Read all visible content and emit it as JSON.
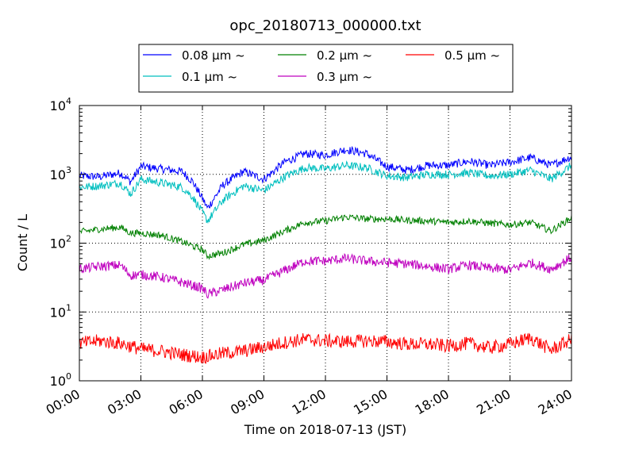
{
  "chart_data": {
    "type": "line",
    "title": "opc_20180713_000000.txt",
    "xlabel": "Time on 2018-07-13 (JST)",
    "ylabel": "Count / L",
    "yscale": "log",
    "ylim": [
      1,
      10000
    ],
    "xlim": [
      "00:00",
      "24:00"
    ],
    "x_ticks": [
      "00:00",
      "03:00",
      "06:00",
      "09:00",
      "12:00",
      "15:00",
      "18:00",
      "21:00",
      "24:00"
    ],
    "y_ticks": [
      {
        "base": "10",
        "exp": "0",
        "value": 1
      },
      {
        "base": "10",
        "exp": "1",
        "value": 10
      },
      {
        "base": "10",
        "exp": "2",
        "value": 100
      },
      {
        "base": "10",
        "exp": "3",
        "value": 1000
      },
      {
        "base": "10",
        "exp": "4",
        "value": 10000
      }
    ],
    "grid": true,
    "legend_position": "top",
    "series": [
      {
        "name": "0.08 μm ~",
        "color": "#0000ff",
        "noise": 0.06,
        "points": [
          [
            "00:00",
            950
          ],
          [
            "01:00",
            920
          ],
          [
            "02:00",
            1050
          ],
          [
            "02:30",
            780
          ],
          [
            "03:00",
            1300
          ],
          [
            "04:00",
            1200
          ],
          [
            "05:00",
            1100
          ],
          [
            "05:30",
            800
          ],
          [
            "06:00",
            450
          ],
          [
            "06:15",
            320
          ],
          [
            "07:00",
            700
          ],
          [
            "08:00",
            1100
          ],
          [
            "09:00",
            850
          ],
          [
            "10:00",
            1500
          ],
          [
            "11:00",
            2000
          ],
          [
            "12:00",
            1900
          ],
          [
            "13:00",
            2300
          ],
          [
            "14:00",
            2000
          ],
          [
            "15:00",
            1300
          ],
          [
            "16:00",
            1150
          ],
          [
            "17:00",
            1350
          ],
          [
            "18:00",
            1350
          ],
          [
            "19:00",
            1550
          ],
          [
            "20:00",
            1350
          ],
          [
            "21:00",
            1500
          ],
          [
            "22:00",
            1750
          ],
          [
            "23:00",
            1350
          ],
          [
            "24:00",
            1800
          ]
        ]
      },
      {
        "name": "0.1 μm ~",
        "color": "#00bfbf",
        "noise": 0.06,
        "points": [
          [
            "00:00",
            650
          ],
          [
            "01:00",
            680
          ],
          [
            "02:00",
            750
          ],
          [
            "02:30",
            520
          ],
          [
            "03:00",
            850
          ],
          [
            "04:00",
            750
          ],
          [
            "05:00",
            650
          ],
          [
            "05:30",
            480
          ],
          [
            "06:00",
            280
          ],
          [
            "06:15",
            210
          ],
          [
            "07:00",
            420
          ],
          [
            "08:00",
            680
          ],
          [
            "09:00",
            580
          ],
          [
            "10:00",
            920
          ],
          [
            "11:00",
            1250
          ],
          [
            "12:00",
            1200
          ],
          [
            "13:00",
            1350
          ],
          [
            "14:00",
            1250
          ],
          [
            "15:00",
            950
          ],
          [
            "16:00",
            900
          ],
          [
            "17:00",
            1000
          ],
          [
            "18:00",
            1000
          ],
          [
            "19:00",
            1050
          ],
          [
            "20:00",
            950
          ],
          [
            "21:00",
            1000
          ],
          [
            "22:00",
            1150
          ],
          [
            "23:00",
            850
          ],
          [
            "24:00",
            1350
          ]
        ]
      },
      {
        "name": "0.2 μm ~",
        "color": "#008000",
        "noise": 0.05,
        "points": [
          [
            "00:00",
            145
          ],
          [
            "01:00",
            160
          ],
          [
            "02:00",
            170
          ],
          [
            "02:30",
            140
          ],
          [
            "03:00",
            140
          ],
          [
            "04:00",
            130
          ],
          [
            "05:00",
            105
          ],
          [
            "06:00",
            80
          ],
          [
            "06:15",
            65
          ],
          [
            "07:00",
            72
          ],
          [
            "08:00",
            95
          ],
          [
            "09:00",
            110
          ],
          [
            "10:00",
            150
          ],
          [
            "11:00",
            200
          ],
          [
            "12:00",
            210
          ],
          [
            "13:00",
            240
          ],
          [
            "14:00",
            225
          ],
          [
            "15:00",
            225
          ],
          [
            "16:00",
            215
          ],
          [
            "17:00",
            210
          ],
          [
            "18:00",
            200
          ],
          [
            "19:00",
            210
          ],
          [
            "20:00",
            195
          ],
          [
            "21:00",
            185
          ],
          [
            "22:00",
            200
          ],
          [
            "23:00",
            150
          ],
          [
            "24:00",
            235
          ]
        ]
      },
      {
        "name": "0.3 μm ~",
        "color": "#bf00bf",
        "noise": 0.07,
        "points": [
          [
            "00:00",
            42
          ],
          [
            "01:00",
            46
          ],
          [
            "02:00",
            48
          ],
          [
            "02:30",
            34
          ],
          [
            "03:00",
            35
          ],
          [
            "04:00",
            32
          ],
          [
            "05:00",
            27
          ],
          [
            "06:00",
            22
          ],
          [
            "06:15",
            18
          ],
          [
            "07:00",
            21
          ],
          [
            "08:00",
            26
          ],
          [
            "09:00",
            29
          ],
          [
            "10:00",
            40
          ],
          [
            "11:00",
            55
          ],
          [
            "12:00",
            55
          ],
          [
            "13:00",
            60
          ],
          [
            "14:00",
            55
          ],
          [
            "15:00",
            52
          ],
          [
            "16:00",
            50
          ],
          [
            "17:00",
            46
          ],
          [
            "18:00",
            42
          ],
          [
            "19:00",
            48
          ],
          [
            "20:00",
            43
          ],
          [
            "21:00",
            41
          ],
          [
            "22:00",
            52
          ],
          [
            "23:00",
            42
          ],
          [
            "24:00",
            62
          ]
        ]
      },
      {
        "name": "0.5 μm ~",
        "color": "#ff0000",
        "noise": 0.1,
        "points": [
          [
            "00:00",
            3.5
          ],
          [
            "01:00",
            3.8
          ],
          [
            "02:00",
            3.5
          ],
          [
            "03:00",
            2.9
          ],
          [
            "04:00",
            2.7
          ],
          [
            "05:00",
            2.4
          ],
          [
            "06:00",
            2.2
          ],
          [
            "07:00",
            2.5
          ],
          [
            "08:00",
            2.7
          ],
          [
            "09:00",
            3.1
          ],
          [
            "10:00",
            3.6
          ],
          [
            "11:00",
            4.0
          ],
          [
            "12:00",
            3.8
          ],
          [
            "13:00",
            3.7
          ],
          [
            "14:00",
            3.8
          ],
          [
            "15:00",
            3.7
          ],
          [
            "16:00",
            3.4
          ],
          [
            "17:00",
            3.4
          ],
          [
            "18:00",
            3.2
          ],
          [
            "19:00",
            3.5
          ],
          [
            "20:00",
            3.0
          ],
          [
            "21:00",
            3.4
          ],
          [
            "22:00",
            4.2
          ],
          [
            "23:00",
            2.8
          ],
          [
            "24:00",
            4.0
          ]
        ]
      }
    ]
  }
}
